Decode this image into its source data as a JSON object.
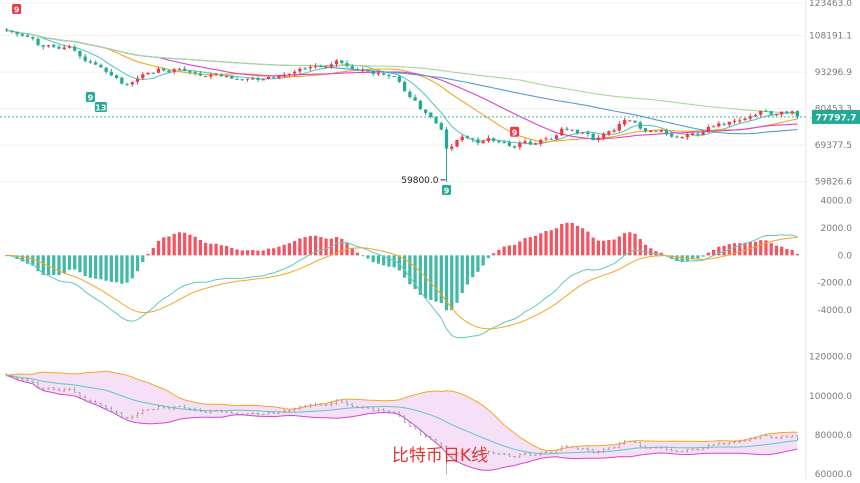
{
  "chart_data": [
    {
      "type": "candlestick",
      "panel": "price",
      "y_ticks": [
        {
          "value": 123463.0,
          "label": "123463.0"
        },
        {
          "value": 108191.1,
          "label": "108191.1"
        },
        {
          "value": 93296.9,
          "label": "93296.9"
        },
        {
          "value": 80453.3,
          "label": "80453.3"
        },
        {
          "value": 69377.5,
          "label": "69377.5"
        },
        {
          "value": 59826.6,
          "label": "59826.6"
        }
      ],
      "ylim": [
        56000,
        124000
      ],
      "y_scale": "log",
      "last_price": {
        "value": 77797.7,
        "label": "77797.7",
        "color": "#22ab94"
      },
      "low_annotation": {
        "value": 59800.0,
        "label": "59800.0"
      },
      "markers": [
        {
          "label": "9",
          "color": "#f23645"
        },
        {
          "label": "9",
          "color": "#22ab94"
        },
        {
          "label": "13",
          "color": "#22ab94"
        },
        {
          "label": "9",
          "color": "#f23645"
        },
        {
          "label": "9",
          "color": "#22ab94"
        }
      ],
      "closes": [
        110500,
        109800,
        108800,
        108100,
        107600,
        106900,
        104200,
        103400,
        104100,
        103400,
        102600,
        103100,
        103500,
        101800,
        99500,
        97600,
        97000,
        96200,
        95100,
        93400,
        92100,
        91100,
        89100,
        88900,
        89600,
        90900,
        92500,
        93100,
        93000,
        94600,
        93900,
        93200,
        94400,
        94500,
        93900,
        93200,
        92900,
        92000,
        91600,
        92200,
        92500,
        91700,
        91800,
        90900,
        90700,
        90600,
        90900,
        90900,
        90400,
        90600,
        91500,
        91000,
        91800,
        92300,
        92700,
        93500,
        94600,
        94700,
        95300,
        95600,
        95200,
        95400,
        96300,
        97800,
        96800,
        95700,
        94500,
        94100,
        94100,
        93700,
        92600,
        92900,
        92300,
        91800,
        91700,
        89700,
        86300,
        84300,
        83100,
        80300,
        79100,
        77800,
        75800,
        73900,
        68400,
        69000,
        70900,
        71800,
        71400,
        71000,
        70000,
        70500,
        71400,
        70600,
        70200,
        70200,
        69200,
        68700,
        70000,
        70500,
        69600,
        69900,
        70900,
        71300,
        71100,
        72200,
        74200,
        73900,
        73900,
        72900,
        73100,
        72600,
        70800,
        71500,
        72700,
        73400,
        73700,
        75600,
        76800,
        76700,
        76100,
        74200,
        73300,
        73600,
        73400,
        73700,
        72500,
        71800,
        71600,
        71700,
        72500,
        72800,
        72400,
        73100,
        74700,
        74900,
        75800,
        75400,
        76300,
        76600,
        76700,
        77300,
        78000,
        78400,
        79700,
        79600,
        78600,
        78700,
        79500,
        78900,
        79600,
        77900
      ],
      "ma_colors": [
        "#5ec8c0",
        "#f5a623",
        "#d946c7",
        "#5b9bd5",
        "#a8d89a"
      ],
      "up_color": "#f23645",
      "down_color": "#22ab94"
    },
    {
      "type": "bar",
      "panel": "macd",
      "y_ticks": [
        {
          "value": 4000.0,
          "label": "4000.0"
        },
        {
          "value": 2000.0,
          "label": "2000.0"
        },
        {
          "value": 0.0,
          "label": "0.0"
        },
        {
          "value": -2000.0,
          "label": "-2000.0"
        },
        {
          "value": -4000.0,
          "label": "-4000.0"
        }
      ],
      "ylim": [
        -6200,
        4200
      ],
      "line_colors": [
        "#5ec8c0",
        "#f5a623"
      ],
      "up_color": "#f23645",
      "down_color": "#22ab94"
    },
    {
      "type": "line",
      "panel": "bollinger",
      "y_ticks": [
        {
          "value": 120000.0,
          "label": "120000.0"
        },
        {
          "value": 100000.0,
          "label": "100000.0"
        },
        {
          "value": 80000.0,
          "label": "80000.0"
        },
        {
          "value": 60000.0,
          "label": "60000.0"
        }
      ],
      "ylim": [
        58000,
        126000
      ],
      "band_fill": "#f3d5f5",
      "upper_color": "#f5a623",
      "middle_color": "#5ec8c0",
      "lower_color": "#d946c7"
    }
  ],
  "watermark": "比特币日K线",
  "watermark_color": "#e8332f"
}
